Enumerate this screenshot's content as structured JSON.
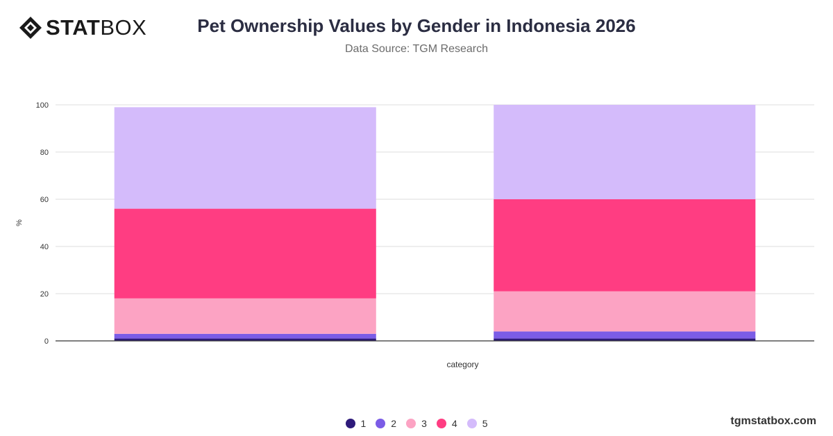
{
  "brand": {
    "logo_bold": "STAT",
    "logo_light": "BOX",
    "footer_url": "tgmstatbox.com"
  },
  "chart_data": {
    "type": "bar",
    "stacked": true,
    "title": "Pet Ownership Values by Gender in Indonesia 2026",
    "subtitle": "Data Source: TGM Research",
    "xlabel": "category",
    "ylabel": "%",
    "ylim": [
      0,
      100
    ],
    "yticks": [
      0,
      20,
      40,
      60,
      80,
      100
    ],
    "grid": true,
    "legend_position": "bottom",
    "categories": [
      "",
      ""
    ],
    "series": [
      {
        "name": "1",
        "color": "#2e1a7a",
        "values": [
          1,
          1
        ]
      },
      {
        "name": "2",
        "color": "#7b5ce6",
        "values": [
          2,
          3
        ]
      },
      {
        "name": "3",
        "color": "#fca3c3",
        "values": [
          15,
          17
        ]
      },
      {
        "name": "4",
        "color": "#ff3d82",
        "values": [
          38,
          39
        ]
      },
      {
        "name": "5",
        "color": "#d4bbfb",
        "values": [
          43,
          40
        ]
      }
    ]
  }
}
